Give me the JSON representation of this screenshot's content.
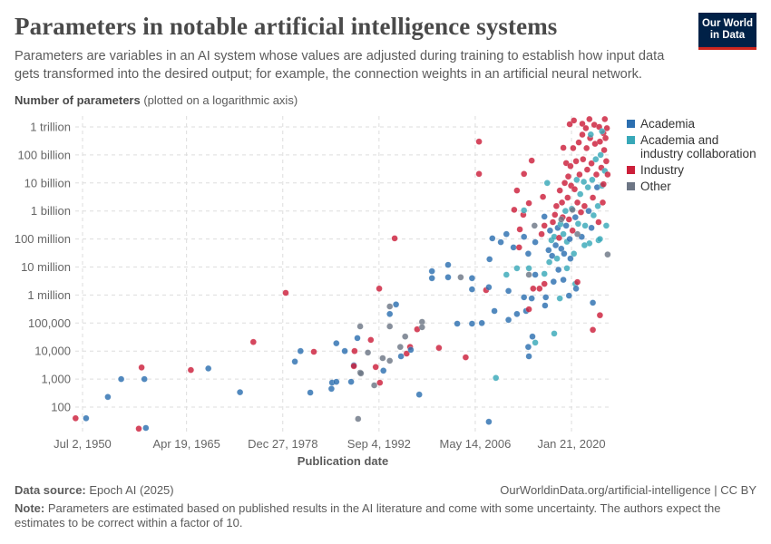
{
  "header": {
    "title": "Parameters in notable artificial intelligence systems",
    "subtitle": "Parameters are variables in an AI system whose values are adjusted during training to establish how input data gets transformed into the desired output; for example, the connection weights in an artificial neural network.",
    "logo_line1": "Our World",
    "logo_line2": "in Data"
  },
  "footer": {
    "source_label": "Data source:",
    "source": "Epoch AI (2025)",
    "url": "OurWorldinData.org/artificial-intelligence | CC BY",
    "note_label": "Note:",
    "note": "Parameters are estimated based on published results in the AI literature and come with some uncertainty. The authors expect the estimates to be correct within a factor of 10."
  },
  "chart_data": {
    "type": "scatter",
    "ylabel_bold": "Number of parameters",
    "ylabel_rest": "(plotted on a logarithmic axis)",
    "xlabel": "Publication date",
    "yscale": "log",
    "ylim": [
      10,
      2000000000000
    ],
    "grid": true,
    "legend_position": "right",
    "y_ticks": [
      {
        "value": 100,
        "label": "100"
      },
      {
        "value": 1000,
        "label": "1,000"
      },
      {
        "value": 10000,
        "label": "10,000"
      },
      {
        "value": 100000,
        "label": "100,000"
      },
      {
        "value": 1000000,
        "label": "1 million"
      },
      {
        "value": 10000000,
        "label": "10 million"
      },
      {
        "value": 100000000,
        "label": "100 million"
      },
      {
        "value": 1000000000,
        "label": "1 billion"
      },
      {
        "value": 10000000000,
        "label": "10 billion"
      },
      {
        "value": 100000000000,
        "label": "100 billion"
      },
      {
        "value": 1000000000000,
        "label": "1 trillion"
      }
    ],
    "x_ticks": [
      {
        "date": "1950-07-02",
        "label": "Jul 2, 1950"
      },
      {
        "date": "1965-04-19",
        "label": "Apr 19, 1965"
      },
      {
        "date": "1978-12-27",
        "label": "Dec 27, 1978"
      },
      {
        "date": "1992-09-04",
        "label": "Sep 4, 1992"
      },
      {
        "date": "2006-05-14",
        "label": "May 14, 2006"
      },
      {
        "date": "2020-01-21",
        "label": "Jan 21, 2020"
      }
    ],
    "categories": [
      {
        "key": "A",
        "name": "Academia",
        "color": "#2c6fb0"
      },
      {
        "key": "C",
        "name": "Academia and industry collaboration",
        "color": "#38a8b8"
      },
      {
        "key": "I",
        "name": "Industry",
        "color": "#cc1f3a"
      },
      {
        "key": "O",
        "name": "Other",
        "color": "#6d7685"
      }
    ],
    "points": [
      [
        1949.5,
        40,
        "I"
      ],
      [
        1951.0,
        40,
        "A"
      ],
      [
        1954.1,
        230,
        "A"
      ],
      [
        1956.0,
        1000,
        "A"
      ],
      [
        1958.9,
        2600,
        "I"
      ],
      [
        1959.3,
        1000,
        "A"
      ],
      [
        1958.5,
        17,
        "I"
      ],
      [
        1959.5,
        18,
        "A"
      ],
      [
        1965.9,
        2100,
        "I"
      ],
      [
        1968.4,
        2400,
        "A"
      ],
      [
        1972.9,
        340,
        "A"
      ],
      [
        1974.8,
        21000,
        "I"
      ],
      [
        1979.4,
        1200000,
        "I"
      ],
      [
        1980.7,
        4200,
        "A"
      ],
      [
        1981.5,
        10000,
        "A"
      ],
      [
        1982.9,
        330,
        "A"
      ],
      [
        1983.4,
        9400,
        "I"
      ],
      [
        1985.9,
        450,
        "A"
      ],
      [
        1986.0,
        750,
        "A"
      ],
      [
        1986.6,
        800,
        "A"
      ],
      [
        1986.6,
        19000,
        "A"
      ],
      [
        1987.8,
        10000,
        "A"
      ],
      [
        1988.7,
        800,
        "A"
      ],
      [
        1989.1,
        3100,
        "A"
      ],
      [
        1989.1,
        2900,
        "I"
      ],
      [
        1989.2,
        10000,
        "I"
      ],
      [
        1989.6,
        29000,
        "A"
      ],
      [
        1989.7,
        38,
        "O"
      ],
      [
        1990.0,
        76000,
        "O"
      ],
      [
        1990.0,
        1700,
        "O"
      ],
      [
        1990.1,
        1600,
        "O"
      ],
      [
        1991.1,
        8800,
        "O"
      ],
      [
        1991.5,
        25000,
        "I"
      ],
      [
        1992.0,
        600,
        "O"
      ],
      [
        1992.2,
        2700,
        "I"
      ],
      [
        1992.7,
        1700000,
        "I"
      ],
      [
        1992.8,
        740,
        "I"
      ],
      [
        1993.2,
        5600,
        "O"
      ],
      [
        1993.3,
        2000,
        "A"
      ],
      [
        1994.2,
        390000,
        "O"
      ],
      [
        1994.2,
        210000,
        "A"
      ],
      [
        1994.2,
        76000,
        "O"
      ],
      [
        1994.2,
        4500,
        "O"
      ],
      [
        1994.9,
        105000000,
        "I"
      ],
      [
        1995.1,
        460000,
        "A"
      ],
      [
        1995.7,
        14000,
        "O"
      ],
      [
        1995.8,
        6500,
        "A"
      ],
      [
        1996.4,
        33000,
        "O"
      ],
      [
        1996.6,
        8100,
        "I"
      ],
      [
        1997.1,
        14000,
        "I"
      ],
      [
        1997.2,
        11000,
        "A"
      ],
      [
        1998.1,
        60000,
        "I"
      ],
      [
        1998.4,
        280,
        "A"
      ],
      [
        1998.8,
        110000,
        "O"
      ],
      [
        1998.8,
        71000,
        "O"
      ],
      [
        2000.2,
        7100000,
        "A"
      ],
      [
        2000.2,
        4000000,
        "A"
      ],
      [
        2001.2,
        13000,
        "I"
      ],
      [
        2002.5,
        12000000,
        "A"
      ],
      [
        2002.5,
        4300000,
        "A"
      ],
      [
        2003.8,
        95000,
        "A"
      ],
      [
        2004.3,
        4300000,
        "O"
      ],
      [
        2005.0,
        6000,
        "I"
      ],
      [
        2005.9,
        4000000,
        "A"
      ],
      [
        2005.9,
        1600000,
        "A"
      ],
      [
        2005.9,
        95000,
        "A"
      ],
      [
        2006.9,
        300000000000,
        "I"
      ],
      [
        2006.9,
        21000000000,
        "I"
      ],
      [
        2007.3,
        100000,
        "A"
      ],
      [
        2007.9,
        1500000,
        "I"
      ],
      [
        2008.3,
        1900000,
        "A"
      ],
      [
        2008.3,
        30,
        "A"
      ],
      [
        2008.4,
        19000000,
        "A"
      ],
      [
        2008.8,
        105000000,
        "A"
      ],
      [
        2009.1,
        270000,
        "A"
      ],
      [
        2009.3,
        1100,
        "C"
      ],
      [
        2010.0,
        77000000,
        "A"
      ],
      [
        2010.8,
        150000000,
        "A"
      ],
      [
        2010.8,
        5300000,
        "C"
      ],
      [
        2011.1,
        1400000,
        "A"
      ],
      [
        2011.1,
        130000,
        "A"
      ],
      [
        2011.8,
        50000000,
        "A"
      ],
      [
        2011.9,
        1100000000,
        "I"
      ],
      [
        2012.3,
        5400000000,
        "I"
      ],
      [
        2012.3,
        9000000,
        "C"
      ],
      [
        2012.3,
        210000,
        "A"
      ],
      [
        2012.6,
        50000000,
        "I"
      ],
      [
        2012.7,
        220000000,
        "I"
      ],
      [
        2013.2,
        730000000,
        "I"
      ],
      [
        2013.3,
        1050000000,
        "C"
      ],
      [
        2013.3,
        120000000,
        "A"
      ],
      [
        2013.3,
        21000000000,
        "I"
      ],
      [
        2013.3,
        830000,
        "A"
      ],
      [
        2013.6,
        270000,
        "A"
      ],
      [
        2013.9,
        30000000,
        "A"
      ],
      [
        2013.9,
        14000,
        "A"
      ],
      [
        2014.0,
        1900000000,
        "I"
      ],
      [
        2014.0,
        310000,
        "I"
      ],
      [
        2014.0,
        6500,
        "A"
      ],
      [
        2014.0,
        5300000,
        "O"
      ],
      [
        2014.0,
        9000000,
        "C"
      ],
      [
        2014.4,
        63000000000,
        "I"
      ],
      [
        2014.4,
        760000,
        "A"
      ],
      [
        2014.5,
        33000,
        "A"
      ],
      [
        2014.6,
        1700000,
        "I"
      ],
      [
        2014.8,
        300000000,
        "O"
      ],
      [
        2014.9,
        77000000,
        "A"
      ],
      [
        2014.9,
        5300000,
        "A"
      ],
      [
        2014.9,
        20000,
        "C"
      ],
      [
        2015.5,
        1700000,
        "I"
      ],
      [
        2015.8,
        150000000,
        "I"
      ],
      [
        2016.0,
        3200000000,
        "I"
      ],
      [
        2016.2,
        630000000,
        "A"
      ],
      [
        2016.2,
        300000000,
        "I"
      ],
      [
        2016.2,
        5700000,
        "C"
      ],
      [
        2016.2,
        2500000,
        "I"
      ],
      [
        2016.3,
        420000,
        "A"
      ],
      [
        2016.4,
        830000,
        "A"
      ],
      [
        2016.6,
        10000000000,
        "C"
      ],
      [
        2017.6,
        42000,
        "C"
      ],
      [
        2017.7,
        730000000,
        "I"
      ],
      [
        2018.4,
        5400000000,
        "I"
      ],
      [
        2018.4,
        760000,
        "C"
      ],
      [
        2018.9,
        180000000000,
        "I"
      ],
      [
        2019.3,
        51000000000,
        "I"
      ],
      [
        2019.7,
        950000,
        "A"
      ],
      [
        2019.8,
        1250000000000,
        "I"
      ],
      [
        2020.4,
        1700000000000,
        "I"
      ],
      [
        2020.6,
        2500000,
        "C"
      ],
      [
        2020.7,
        1700000,
        "A"
      ],
      [
        2020.9,
        2900000,
        "I"
      ],
      [
        2021.6,
        1300000000000,
        "I"
      ],
      [
        2022.6,
        1900000000000,
        "I"
      ],
      [
        2023.1,
        530000,
        "A"
      ],
      [
        2023.1,
        57000,
        "I"
      ],
      [
        2024.1,
        190000,
        "I"
      ],
      [
        2024.8,
        1900000000000,
        "I"
      ],
      [
        2016.8,
        40000000,
        "A"
      ],
      [
        2016.9,
        15000000,
        "C"
      ],
      [
        2017.0,
        200000000,
        "A"
      ],
      [
        2017.2,
        90000000,
        "C"
      ],
      [
        2017.3,
        25000000,
        "A"
      ],
      [
        2017.4,
        400000000,
        "I"
      ],
      [
        2017.5,
        3000000,
        "A"
      ],
      [
        2017.6,
        120000000,
        "C"
      ],
      [
        2017.8,
        60000000,
        "A"
      ],
      [
        2017.9,
        1500000000,
        "I"
      ],
      [
        2018.0,
        20000000,
        "C"
      ],
      [
        2018.1,
        250000000,
        "A"
      ],
      [
        2018.2,
        8000000,
        "A"
      ],
      [
        2018.3,
        110000000,
        "I"
      ],
      [
        2018.5,
        340000000,
        "C"
      ],
      [
        2018.6,
        45000000,
        "A"
      ],
      [
        2018.7,
        2000000000,
        "I"
      ],
      [
        2018.8,
        600000000,
        "I"
      ],
      [
        2018.9,
        150000000,
        "C"
      ],
      [
        2019.0,
        30000000,
        "A"
      ],
      [
        2019.1,
        10000000000,
        "I"
      ],
      [
        2019.2,
        1000000000,
        "C"
      ],
      [
        2019.3,
        300000000,
        "A"
      ],
      [
        2019.4,
        80000000,
        "C"
      ],
      [
        2019.5,
        3000000000,
        "I"
      ],
      [
        2019.6,
        17000000000,
        "I"
      ],
      [
        2019.7,
        500000000,
        "I"
      ],
      [
        2019.8,
        100000000,
        "A"
      ],
      [
        2019.9,
        40000000000,
        "I"
      ],
      [
        2020.0,
        8000000000,
        "I"
      ],
      [
        2020.1,
        1200000000,
        "C"
      ],
      [
        2020.2,
        200000000,
        "I"
      ],
      [
        2020.3,
        175000000000,
        "I"
      ],
      [
        2020.4,
        30000000,
        "C"
      ],
      [
        2020.5,
        6000000000,
        "I"
      ],
      [
        2020.6,
        600000000,
        "A"
      ],
      [
        2020.7,
        60000000000,
        "I"
      ],
      [
        2020.8,
        13000000000,
        "C"
      ],
      [
        2020.9,
        2000000000,
        "I"
      ],
      [
        2021.0,
        350000000,
        "C"
      ],
      [
        2021.1,
        280000000000,
        "I"
      ],
      [
        2021.2,
        20000000000,
        "I"
      ],
      [
        2021.3,
        4000000000,
        "C"
      ],
      [
        2021.4,
        900000000,
        "I"
      ],
      [
        2021.5,
        120000000,
        "A"
      ],
      [
        2021.6,
        530000000000,
        "I"
      ],
      [
        2021.7,
        70000000000,
        "I"
      ],
      [
        2021.8,
        11000000000,
        "C"
      ],
      [
        2021.9,
        1500000000,
        "I"
      ],
      [
        2022.0,
        300000000,
        "C"
      ],
      [
        2022.1,
        900000000000,
        "I"
      ],
      [
        2022.2,
        175000000000,
        "I"
      ],
      [
        2022.3,
        30000000000,
        "I"
      ],
      [
        2022.4,
        7000000000,
        "C"
      ],
      [
        2022.5,
        1000000000,
        "A"
      ],
      [
        2022.6,
        70000000,
        "C"
      ],
      [
        2022.7,
        400000000000,
        "I"
      ],
      [
        2022.8,
        540000000000,
        "C"
      ],
      [
        2022.9,
        50000000000,
        "I"
      ],
      [
        2023.0,
        13000000000,
        "C"
      ],
      [
        2023.1,
        3000000000,
        "I"
      ],
      [
        2023.2,
        700000000,
        "C"
      ],
      [
        2023.3,
        1200000000000,
        "I"
      ],
      [
        2023.4,
        250000000000,
        "I"
      ],
      [
        2023.5,
        70000000000,
        "C"
      ],
      [
        2023.6,
        20000000000,
        "I"
      ],
      [
        2023.7,
        7000000000,
        "A"
      ],
      [
        2023.8,
        1500000000,
        "C"
      ],
      [
        2023.9,
        400000000,
        "I"
      ],
      [
        2024.0,
        1000000000000,
        "I"
      ],
      [
        2024.1,
        300000000000,
        "I"
      ],
      [
        2024.2,
        100000000000,
        "C"
      ],
      [
        2024.3,
        35000000000,
        "I"
      ],
      [
        2024.4,
        8000000000,
        "C"
      ],
      [
        2024.5,
        2000000000,
        "I"
      ],
      [
        2024.6,
        600000000000,
        "I"
      ],
      [
        2024.7,
        150000000000,
        "I"
      ],
      [
        2024.8,
        27000000000,
        "C"
      ],
      [
        2024.9,
        400000000000,
        "I"
      ],
      [
        2025.0,
        60000000000,
        "I"
      ],
      [
        2025.1,
        900000000000,
        "I"
      ],
      [
        2025.2,
        20000000000,
        "I"
      ],
      [
        2025.0,
        300000000,
        "C"
      ],
      [
        2025.2,
        28000000,
        "O"
      ],
      [
        2024.6,
        9000000000,
        "I"
      ],
      [
        2023.9,
        90000000,
        "C"
      ],
      [
        2022.9,
        250000000,
        "A"
      ],
      [
        2021.9,
        60000000,
        "C"
      ],
      [
        2020.9,
        150000000,
        "O"
      ],
      [
        2019.9,
        20000000,
        "A"
      ],
      [
        2019.4,
        9000000,
        "C"
      ],
      [
        2018.9,
        3500000,
        "A"
      ],
      [
        2020.2,
        1100000000,
        "O"
      ],
      [
        2018.6,
        500000000,
        "O"
      ],
      [
        2024.1,
        100000000,
        "C"
      ],
      [
        2024.4,
        700000000000,
        "C"
      ]
    ]
  }
}
